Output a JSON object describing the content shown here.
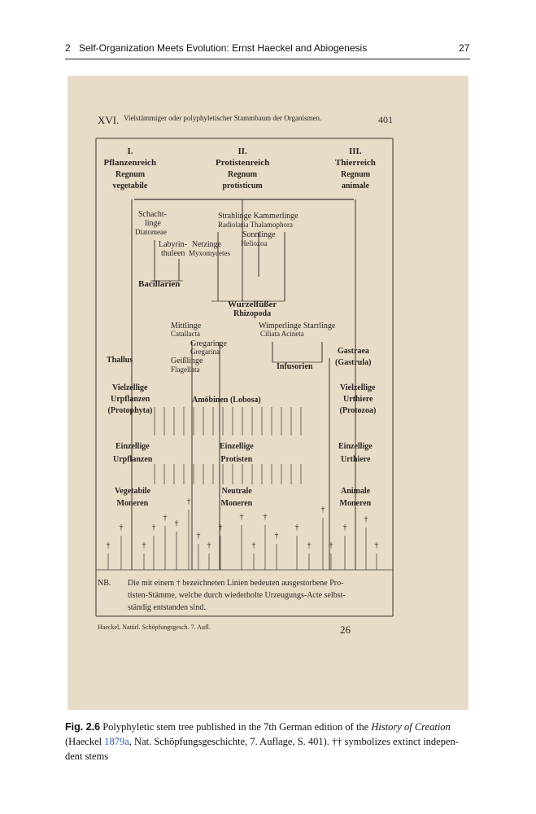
{
  "header": {
    "chapter": "2",
    "title": "Self-Organization Meets Evolution: Ernst Haeckel and Abiogenesis",
    "page_number": "27"
  },
  "plate": {
    "number": "XVI.",
    "heading": "Vielstämmiger oder polyphyletischer Stammbaum der Organismen.",
    "page": "401",
    "labels": [
      "I.",
      "Pflanzenreich",
      "Regnum",
      "vegetabile",
      "II.",
      "Protistenreich",
      "Regnum",
      "protisticum",
      "III.",
      "Thierreich",
      "Regnum",
      "animale",
      "Schacht-",
      "linge",
      "Diatomeae",
      "Strahlinge Kammerlinge",
      "Radiolaria Thalamophora",
      "Sonnlinge",
      "Heliozoa",
      "Labyrin-",
      "thuleen",
      "Netzinge",
      "Myxomycetes",
      "Bacillarien",
      "Wurzelfüßer",
      "Rhizopoda",
      "Mittlinge",
      "Catallacta",
      "Wimperlinge Starrlinge",
      "Ciliata Acineta",
      "Gregaringe",
      "Gregarina",
      "Geißlinge",
      "Flagellata",
      "Thallus",
      "Infusorien",
      "Gastraea",
      "(Gastrula)",
      "Vielzellige",
      "Urpflanzen",
      "(Protophyta)",
      "Amöbinen (Lobosa)",
      "Vielzellige",
      "Urthiere",
      "(Protozoa)",
      "Einzellige",
      "Urpflanzen",
      "Einzellige",
      "Protisten",
      "Einzellige",
      "Urthiere",
      "Vegetabile",
      "Moneren",
      "Neutrale",
      "Moneren",
      "Animale",
      "Moneren"
    ],
    "dagger": "†",
    "note_label": "NB.",
    "note_lines": [
      "Die mit einem † bezeichneten Linien bedeuten ausgestorbene Pro-",
      "tisten-Stämme, welche durch wiederholte Urzeugungs-Acte selbst-",
      "ständig entstanden sind."
    ],
    "footer": "Haeckel, Natürl. Schöpfungsgesch. 7. Aufl.",
    "footer_page": "26"
  },
  "caption": {
    "label": "Fig. 2.6",
    "text_1": "Polyphyletic stem tree published in the 7th German edition of the",
    "italic": "History of Creation",
    "text_2": "(Haeckel",
    "link": "1879a",
    "text_3": ", Nat. Schöpfungsgeschichte, 7. Auflage, S. 401). †† symbolizes extinct indepen-",
    "text_4": "dent stems"
  }
}
